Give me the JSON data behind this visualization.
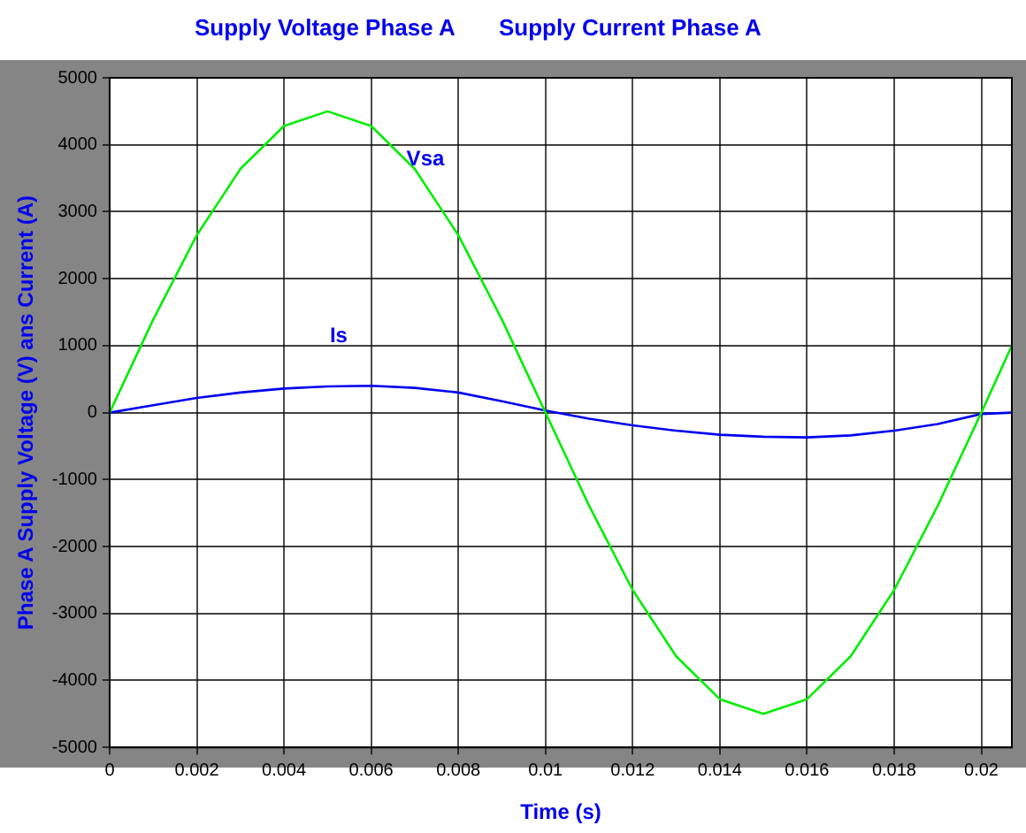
{
  "chart_data": {
    "type": "line",
    "title": "Supply Voltage Phase A",
    "subtitle": "Supply Current Phase A",
    "xlabel": "Time (s)",
    "ylabel": "Phase A Supply Voltage (V) ans Current (A)",
    "x": [
      0,
      0.001,
      0.002,
      0.003,
      0.004,
      0.005,
      0.006,
      0.007,
      0.008,
      0.009,
      0.01,
      0.011,
      0.012,
      0.013,
      0.014,
      0.015,
      0.016,
      0.017,
      0.018,
      0.019,
      0.02,
      0.0207
    ],
    "series": [
      {
        "name": "Vsa",
        "color": "#00ee00",
        "values": [
          0,
          1390,
          2650,
          3640,
          4280,
          4500,
          4280,
          3640,
          2650,
          1390,
          0,
          -1390,
          -2650,
          -3640,
          -4280,
          -4500,
          -4280,
          -3640,
          -2650,
          -1390,
          0,
          1000
        ]
      },
      {
        "name": "Is",
        "color": "#0000ee",
        "values": [
          0,
          110,
          220,
          300,
          360,
          390,
          400,
          370,
          300,
          170,
          30,
          -90,
          -190,
          -270,
          -330,
          -360,
          -370,
          -340,
          -270,
          -170,
          -20,
          0
        ]
      }
    ],
    "xlim": [
      0,
      0.0207
    ],
    "xticks": [
      0,
      0.002,
      0.004,
      0.006,
      0.008,
      0.01,
      0.012,
      0.014,
      0.016,
      0.018,
      0.02
    ],
    "ylim": [
      -5000,
      5000
    ],
    "yticks": [
      -5000,
      -4000,
      -3000,
      -2000,
      -1000,
      0,
      1000,
      2000,
      3000,
      4000,
      5000
    ],
    "grid": true,
    "legend": false,
    "marker": "none",
    "line_style": "solid"
  }
}
